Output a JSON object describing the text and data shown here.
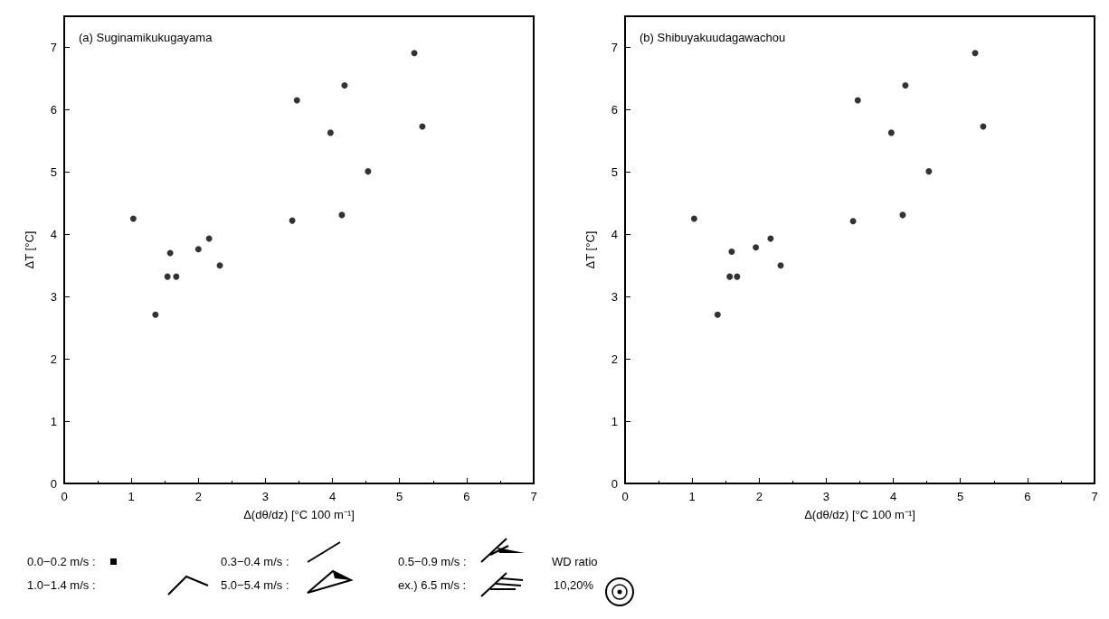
{
  "chart_data": [
    {
      "type": "scatter",
      "title": "(a) Suginamikukugayama",
      "xlabel": "Δ(dθ/dz) [°C 100 m⁻¹]",
      "ylabel": "ΔT [°C]",
      "x": [
        1.03,
        1.36,
        1.54,
        1.67,
        1.58,
        2.0,
        2.16,
        2.32,
        3.4,
        4.14,
        4.53,
        3.97,
        3.47,
        4.18,
        5.22,
        5.34
      ],
      "series": [
        {
          "color": "#000000",
          "values": [
            4.25,
            2.71,
            3.32,
            3.32,
            3.7,
            3.76,
            3.93,
            3.5,
            4.22,
            4.31,
            5.01,
            5.63,
            6.15,
            6.39,
            6.91,
            5.73
          ]
        }
      ],
      "xlim": [
        0,
        7
      ],
      "ylim": [
        0,
        7.5
      ],
      "xticks": [
        0,
        1,
        2,
        3,
        4,
        5,
        6,
        7
      ],
      "yticks": [
        0,
        1,
        2,
        3,
        4,
        5,
        6,
        7
      ],
      "grid": false,
      "marker": "circle",
      "annotations": [
        "0.0−0.2 m/s :",
        "1.0−1.4 m/s :",
        "0.3−0.4 m/s :",
        "5.0−5.4 m/s :",
        "0.5−0.9 m/s :",
        "ex.) 6.5 m/s :",
        "WD ratio",
        "10,20%"
      ]
    },
    {
      "type": "scatter",
      "title": "(b) Shibuyakuudagawachou",
      "xlabel": "Δ(dθ/dz) [°C 100 m⁻¹]",
      "ylabel": "ΔT [°C]",
      "x": [
        1.03,
        1.38,
        1.56,
        1.67,
        1.59,
        1.95,
        2.17,
        2.32,
        3.4,
        4.14,
        4.53,
        3.97,
        3.47,
        4.18,
        5.22,
        5.34
      ],
      "series": [
        {
          "color": "#000000",
          "values": [
            4.25,
            2.71,
            3.32,
            3.32,
            3.72,
            3.79,
            3.93,
            3.5,
            4.21,
            4.31,
            5.01,
            5.63,
            6.15,
            6.39,
            6.91,
            5.73
          ]
        }
      ],
      "xlim": [
        0,
        7
      ],
      "ylim": [
        0,
        7.5
      ],
      "xticks": [
        0,
        1,
        2,
        3,
        4,
        5,
        6,
        7
      ],
      "yticks": [
        0,
        1,
        2,
        3,
        4,
        5,
        6,
        7
      ],
      "grid": false,
      "marker": "circle"
    }
  ]
}
